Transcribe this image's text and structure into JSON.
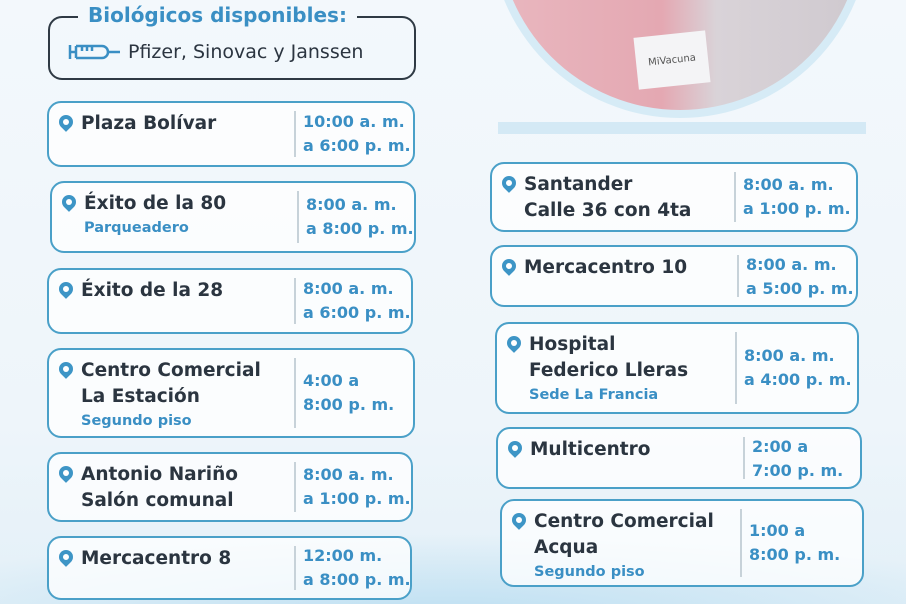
{
  "biologicos": {
    "title": "Biológicos disponibles:",
    "icon": "syringe-icon",
    "list": "Pfizer, Sinovac y Janssen"
  },
  "photo": {
    "card_text": "MiVacuna"
  },
  "colors": {
    "accent": "#3a8fc4",
    "border": "#4aa0c8",
    "text": "#2b3540"
  },
  "left": [
    {
      "name": [
        "Plaza Bolívar"
      ],
      "sub": "",
      "time": [
        "10:00 a. m.",
        "a 6:00 p. m."
      ]
    },
    {
      "name": [
        "Éxito de la 80"
      ],
      "sub": "Parqueadero",
      "time": [
        "8:00 a. m.",
        "a 8:00 p. m."
      ]
    },
    {
      "name": [
        "Éxito de la 28"
      ],
      "sub": "",
      "time": [
        "8:00 a. m.",
        "a  6:00 p. m."
      ]
    },
    {
      "name": [
        "Centro Comercial",
        "La Estación"
      ],
      "sub": "Segundo piso",
      "time": [
        "4:00 a",
        "8:00 p. m."
      ]
    },
    {
      "name": [
        "Antonio Nariño",
        "Salón comunal"
      ],
      "sub": "",
      "time": [
        "8:00 a. m.",
        "a 1:00 p. m."
      ]
    },
    {
      "name": [
        "Mercacentro 8"
      ],
      "sub": "",
      "time": [
        "12:00 m.",
        "a 8:00 p. m."
      ]
    }
  ],
  "right": [
    {
      "name": [
        "Santander",
        "Calle 36 con 4ta"
      ],
      "sub": "",
      "time": [
        "8:00 a. m.",
        "a 1:00 p. m."
      ]
    },
    {
      "name": [
        "Mercacentro 10"
      ],
      "sub": "",
      "time": [
        "8:00 a. m.",
        "a 5:00 p. m."
      ]
    },
    {
      "name": [
        "Hospital",
        "Federico Lleras"
      ],
      "sub": "Sede La Francia",
      "time": [
        "8:00 a. m.",
        "a 4:00 p. m."
      ]
    },
    {
      "name": [
        "Multicentro"
      ],
      "sub": "",
      "time": [
        "2:00 a",
        "7:00 p. m."
      ]
    },
    {
      "name": [
        "Centro Comercial",
        "Acqua"
      ],
      "sub": "Segundo piso",
      "time": [
        "1:00 a",
        "8:00 p. m."
      ]
    }
  ]
}
